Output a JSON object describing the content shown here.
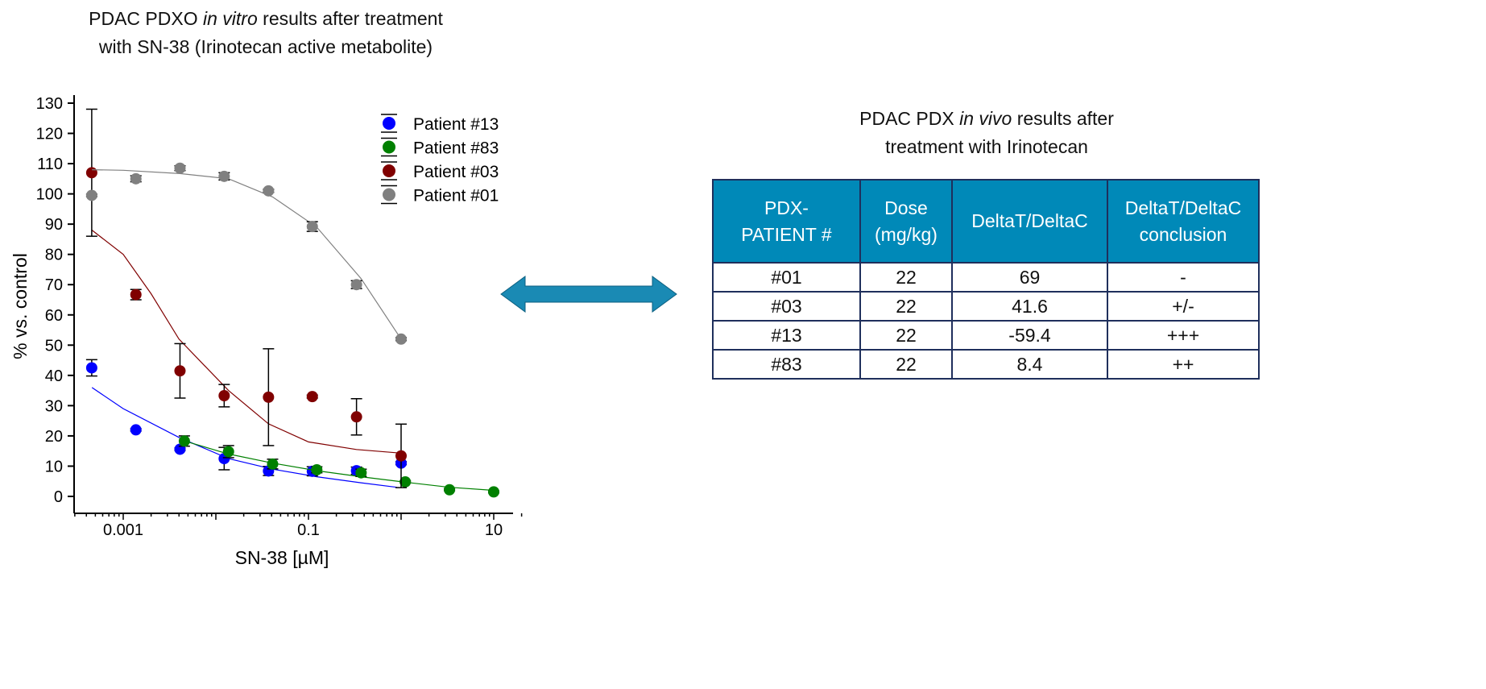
{
  "chart_title": {
    "line1_a": "PDAC PDXO ",
    "line1_italic": "in vitro",
    "line1_b": " results after treatment",
    "line2": "with SN-38 (Irinotecan active metabolite)"
  },
  "table_title": {
    "line1_a": "PDAC PDX ",
    "line1_italic": "in vivo",
    "line1_b": " results after",
    "line2": "treatment with Irinotecan"
  },
  "chart_data": {
    "type": "scatter",
    "xlabel": "SN-38 [µM]",
    "ylabel": "% vs. control",
    "xscale": "log",
    "xlim": [
      0.0003,
      20
    ],
    "ylim": [
      -4,
      134
    ],
    "xticks": [
      {
        "v": 0.001,
        "label": "0.001"
      },
      {
        "v": 0.1,
        "label": "0.1"
      },
      {
        "v": 10,
        "label": "10"
      }
    ],
    "yticks": [
      0,
      10,
      20,
      30,
      40,
      50,
      60,
      70,
      80,
      90,
      100,
      110,
      120,
      130
    ],
    "legend": "top-right",
    "grid": false,
    "series": [
      {
        "name": "Patient #13",
        "color": "#0000ff",
        "x": [
          0.000457,
          0.00137,
          0.0041,
          0.0123,
          0.037,
          0.11,
          0.33,
          1.0
        ],
        "y": [
          42.5,
          22,
          15.6,
          12.5,
          8.4,
          8.3,
          8.5,
          11
        ],
        "err": [
          2.7,
          0.4,
          0.4,
          3.7,
          1.5,
          1.5,
          1.2,
          0.5
        ],
        "fit": [
          [
            0.00046,
            36
          ],
          [
            0.001,
            29
          ],
          [
            0.004,
            19.5
          ],
          [
            0.0137,
            12.5
          ],
          [
            0.041,
            9
          ],
          [
            0.123,
            6.5
          ],
          [
            0.37,
            4.5
          ],
          [
            0.9,
            3
          ]
        ]
      },
      {
        "name": "Patient #83",
        "color": "#008000",
        "x": [
          0.00457,
          0.0137,
          0.041,
          0.123,
          0.37,
          1.11,
          3.33,
          10
        ],
        "y": [
          18.3,
          14.8,
          10.7,
          8.8,
          7.8,
          4.8,
          2.2,
          1.5
        ],
        "err": [
          1.7,
          2,
          1.6,
          1,
          1.2,
          0.3,
          0.3,
          0.3
        ],
        "fit": [
          [
            0.0046,
            18.3
          ],
          [
            0.0137,
            14
          ],
          [
            0.041,
            11
          ],
          [
            0.123,
            8.5
          ],
          [
            0.37,
            6.5
          ],
          [
            1.11,
            4.7
          ],
          [
            3.33,
            3
          ],
          [
            10,
            2
          ]
        ]
      },
      {
        "name": "Patient #03",
        "color": "#800000",
        "x": [
          0.000457,
          0.00137,
          0.0041,
          0.0123,
          0.037,
          0.11,
          0.33,
          1.0
        ],
        "y": [
          107,
          66.7,
          41.5,
          33.3,
          32.8,
          33,
          26.3,
          13.4
        ],
        "err": [
          21,
          1.7,
          9,
          3.7,
          16,
          0.5,
          6,
          10.5
        ],
        "fit": [
          [
            0.00046,
            88
          ],
          [
            0.001,
            80
          ],
          [
            0.002,
            67
          ],
          [
            0.004,
            52
          ],
          [
            0.0137,
            35
          ],
          [
            0.037,
            24
          ],
          [
            0.1,
            18
          ],
          [
            0.33,
            15.5
          ],
          [
            1,
            14.3
          ]
        ]
      },
      {
        "name": "Patient #01",
        "color": "#808080",
        "x": [
          0.000457,
          0.00137,
          0.0041,
          0.0123,
          0.037,
          0.11,
          0.33,
          1.0
        ],
        "y": [
          99.5,
          105,
          108.5,
          105.8,
          101,
          89.2,
          70,
          52
        ],
        "err": [
          0.4,
          1,
          0.8,
          1.2,
          0.5,
          1.6,
          1.3,
          0.5
        ],
        "fit": [
          [
            0.00046,
            108
          ],
          [
            0.001,
            107.8
          ],
          [
            0.0041,
            106.7
          ],
          [
            0.0137,
            105
          ],
          [
            0.041,
            99
          ],
          [
            0.123,
            89
          ],
          [
            0.37,
            72
          ],
          [
            1,
            52
          ]
        ]
      }
    ]
  },
  "arrow": {
    "color": "#1a8ab4"
  },
  "table": {
    "headers": [
      [
        "PDX-",
        "PATIENT #"
      ],
      [
        "Dose",
        "(mg/kg)"
      ],
      [
        "DeltaT/DeltaC",
        ""
      ],
      [
        "DeltaT/DeltaC",
        "conclusion"
      ]
    ],
    "rows": [
      [
        "#01",
        "22",
        "69",
        "-"
      ],
      [
        "#03",
        "22",
        "41.6",
        "+/-"
      ],
      [
        "#13",
        "22",
        "-59.4",
        "+++"
      ],
      [
        "#83",
        "22",
        "8.4",
        "++"
      ]
    ],
    "header_color": "#0089b8",
    "border_color": "#1f2f5c"
  }
}
